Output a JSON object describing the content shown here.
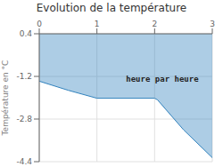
{
  "chart_data": {
    "type": "area",
    "title": "Evolution de la température",
    "ylabel": "Température en °C",
    "x": [
      0,
      0.5,
      1.0,
      2.0,
      2.05,
      2.5,
      3.0
    ],
    "values": [
      -1.38,
      -1.72,
      -2.02,
      -2.02,
      -2.08,
      -3.2,
      -4.25
    ],
    "fill_top": 0.4,
    "xlim": [
      0,
      3
    ],
    "ylim": [
      -4.4,
      0.4
    ],
    "xticks": [
      0,
      1,
      2,
      3
    ],
    "yticks": [
      0.4,
      -1.2,
      -2.8,
      -4.4
    ],
    "grid": true,
    "annotations": [
      {
        "text": "heure par heure",
        "x": 1.52,
        "y": -1.15
      }
    ]
  }
}
